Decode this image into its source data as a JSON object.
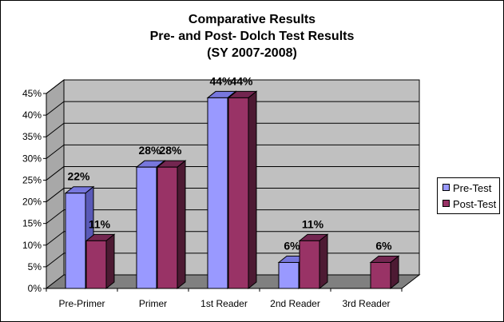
{
  "chart_data": {
    "type": "bar",
    "title_lines": [
      "Comparative Results",
      "Pre- and Post- Dolch Test Results",
      "(SY 2007-2008)"
    ],
    "categories": [
      "Pre-Primer",
      "Primer",
      "1st Reader",
      "2nd Reader",
      "3rd Reader"
    ],
    "series": [
      {
        "name": "Pre-Test",
        "values": [
          22,
          28,
          44,
          6,
          null
        ],
        "labels": [
          "22%",
          "28%",
          "44%",
          "6%",
          ""
        ],
        "color": "#9999ff",
        "side_color": "#5a5ab8",
        "top_color": "#7777dd"
      },
      {
        "name": "Post-Test",
        "values": [
          11,
          28,
          44,
          11,
          6
        ],
        "labels": [
          "11%",
          "28%",
          "44%",
          "11%",
          "6%"
        ],
        "color": "#993366",
        "side_color": "#4d1a33",
        "top_color": "#732650"
      }
    ],
    "yticks": [
      "0%",
      "5%",
      "10%",
      "15%",
      "20%",
      "25%",
      "30%",
      "35%",
      "40%",
      "45%"
    ],
    "ylim": [
      0,
      45
    ],
    "grid": true,
    "wall_color": "#c0c0c0",
    "floor_color": "#808080",
    "legend_position": "right"
  }
}
